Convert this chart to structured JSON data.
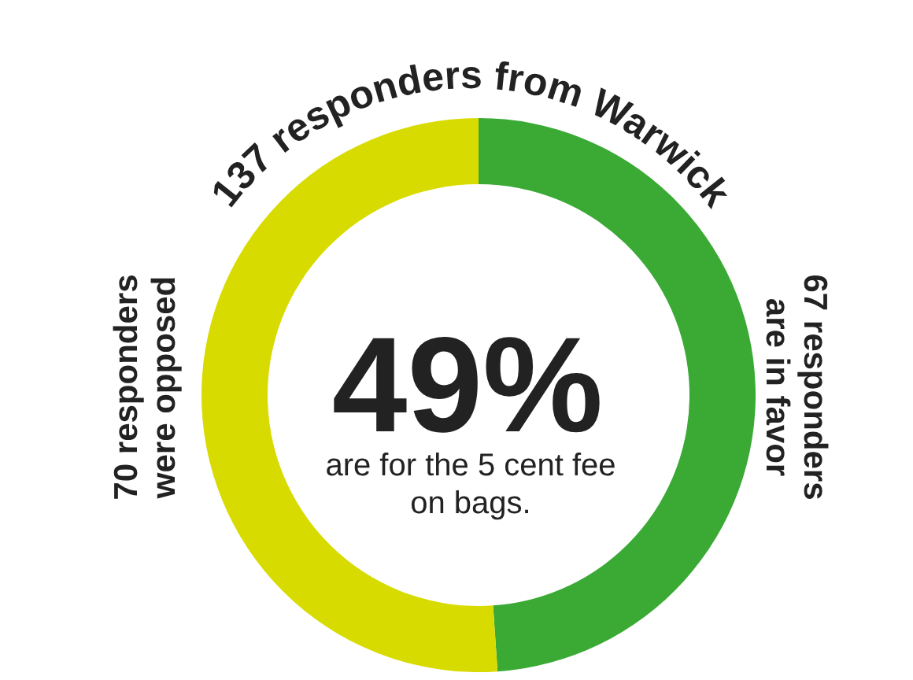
{
  "chart_data": {
    "type": "donut",
    "title": "137 responders from Warwick",
    "categories": [
      "67 responders are in favor",
      "70 responders were opposed"
    ],
    "values": [
      67,
      70
    ],
    "colors": [
      "#3aaa35",
      "#d8db00"
    ],
    "annotations": [
      "49%",
      "are for the 5 cent fee on bags."
    ],
    "legend": false
  }
}
